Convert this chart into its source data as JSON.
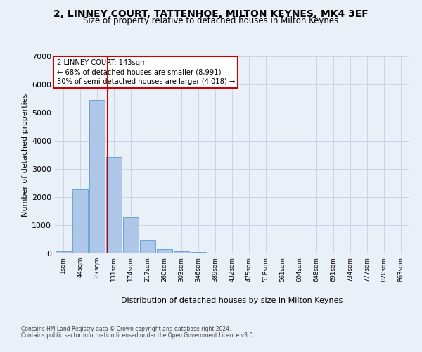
{
  "title_line1": "2, LINNEY COURT, TATTENHOE, MILTON KEYNES, MK4 3EF",
  "title_line2": "Size of property relative to detached houses in Milton Keynes",
  "xlabel": "Distribution of detached houses by size in Milton Keynes",
  "ylabel": "Number of detached properties",
  "annotation_line1": "2 LINNEY COURT: 143sqm",
  "annotation_line2": "← 68% of detached houses are smaller (8,991)",
  "annotation_line3": "30% of semi-detached houses are larger (4,018) →",
  "footnote1": "Contains HM Land Registry data © Crown copyright and database right 2024.",
  "footnote2": "Contains public sector information licensed under the Open Government Licence v3.0.",
  "bar_color": "#aec6e8",
  "bar_edge_color": "#5b9bd5",
  "grid_color": "#c8d4e8",
  "annotation_box_edge": "#cc0000",
  "vline_color": "#cc0000",
  "background_color": "#eaf0f8",
  "categories": [
    "1sqm",
    "44sqm",
    "87sqm",
    "131sqm",
    "174sqm",
    "217sqm",
    "260sqm",
    "303sqm",
    "346sqm",
    "389sqm",
    "432sqm",
    "475sqm",
    "518sqm",
    "561sqm",
    "604sqm",
    "648sqm",
    "691sqm",
    "734sqm",
    "777sqm",
    "820sqm",
    "863sqm"
  ],
  "values": [
    75,
    2270,
    5460,
    3430,
    1310,
    470,
    160,
    85,
    55,
    30,
    0,
    0,
    0,
    0,
    0,
    0,
    0,
    0,
    0,
    0,
    0
  ],
  "ylim": [
    0,
    7000
  ],
  "yticks": [
    0,
    1000,
    2000,
    3000,
    4000,
    5000,
    6000,
    7000
  ],
  "vline_x": 2.62
}
